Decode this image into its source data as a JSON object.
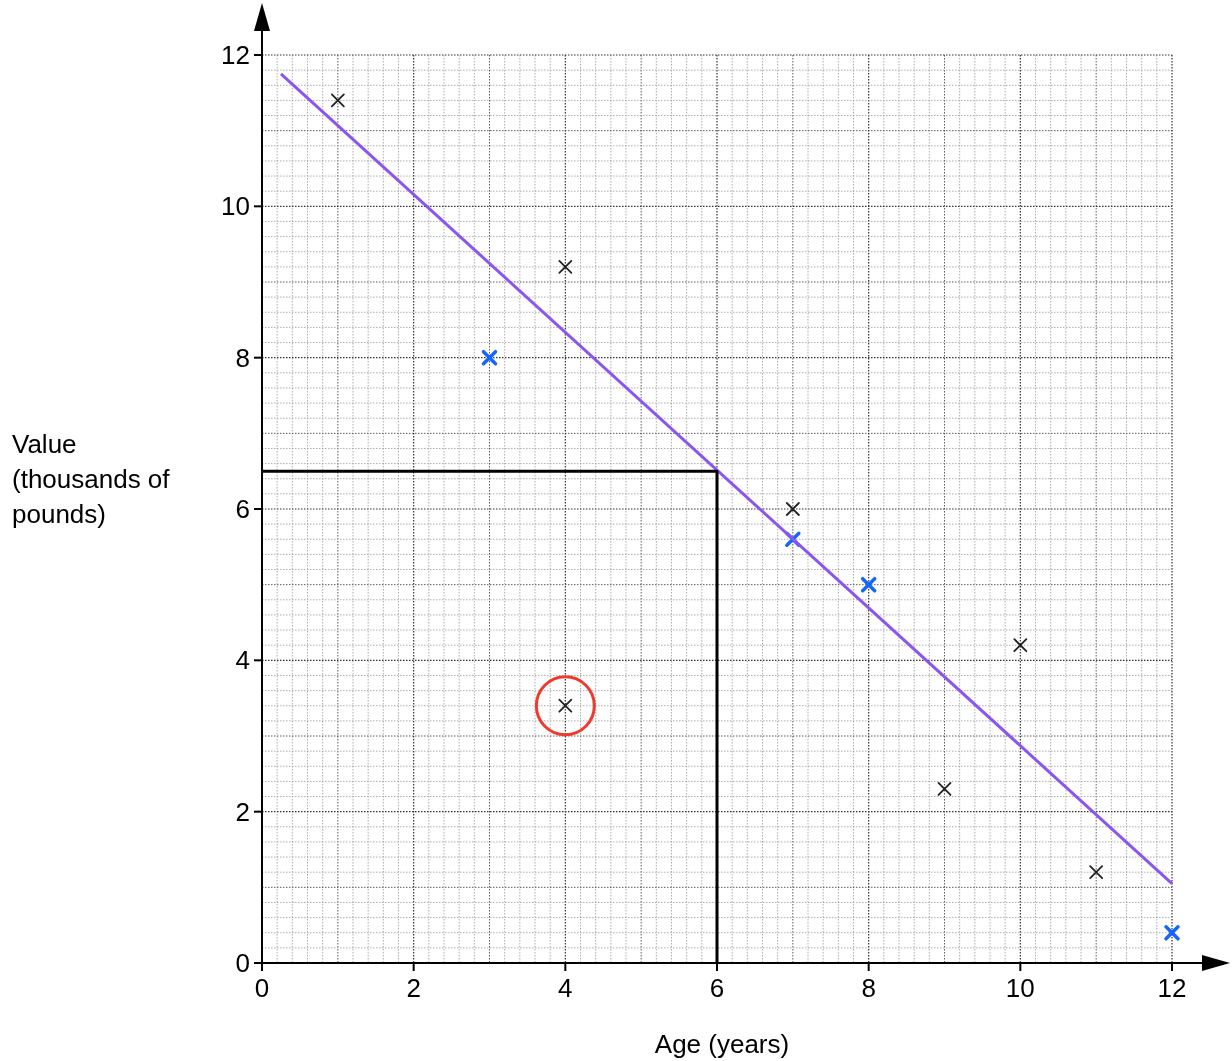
{
  "chart_data": {
    "type": "scatter",
    "xlabel": "Age (years)",
    "ylabel": "Value (thousands of pounds)",
    "xlim": [
      0,
      12
    ],
    "ylim": [
      0,
      12
    ],
    "xticks": [
      0,
      2,
      4,
      6,
      8,
      10,
      12
    ],
    "yticks": [
      0,
      2,
      4,
      6,
      8,
      10,
      12
    ],
    "grid": true,
    "series": [
      {
        "color": "#222222",
        "marker": "cross",
        "x": [
          1,
          4,
          7,
          10,
          9,
          11
        ],
        "values": [
          11.4,
          9.2,
          6,
          4.2,
          2.3,
          1.2
        ]
      },
      {
        "color": "#222222",
        "marker": "cross",
        "x": [
          4
        ],
        "values": [
          3.4
        ]
      },
      {
        "color": "#1565ff",
        "marker": "cross",
        "x": [
          3,
          7,
          8,
          12
        ],
        "values": [
          8,
          5.6,
          5,
          0.4
        ]
      },
      {
        "type": "line",
        "color": "#8b55f0",
        "x": [
          0.25,
          12
        ],
        "values": [
          11.75,
          1.05
        ]
      },
      {
        "type": "line",
        "color": "#000000",
        "x": [
          0,
          6,
          6
        ],
        "values": [
          6.5,
          6.5,
          0
        ]
      }
    ]
  }
}
